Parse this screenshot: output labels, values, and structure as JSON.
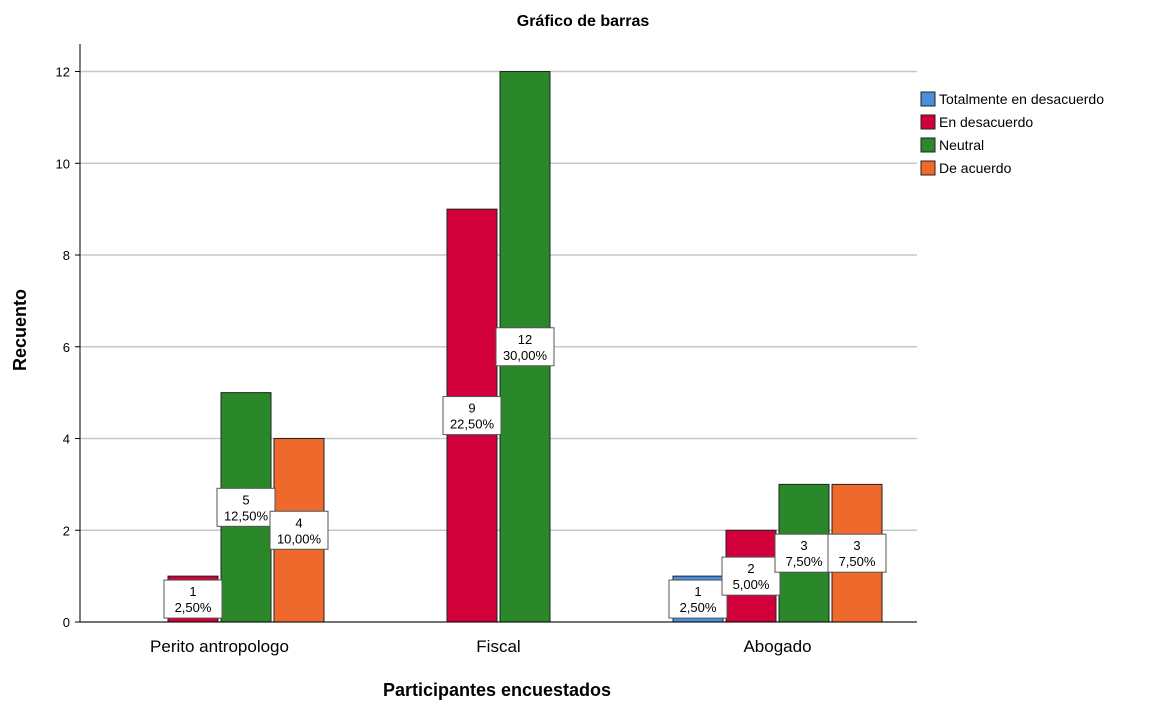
{
  "chart_data": {
    "type": "bar",
    "title": "Gráfico de barras",
    "x_label": "Participantes encuestados",
    "y_label": "Recuento",
    "categories": [
      "Perito antropologo",
      "Fiscal",
      "Abogado"
    ],
    "series": [
      {
        "name": "Totalmente en desacuerdo",
        "color": "#4a8fdc",
        "values": [
          null,
          null,
          1
        ],
        "percent_labels": [
          null,
          null,
          "2,50%"
        ]
      },
      {
        "name": "En desacuerdo",
        "color": "#d2003a",
        "values": [
          1,
          9,
          2
        ],
        "percent_labels": [
          "2,50%",
          "22,50%",
          "5,00%"
        ]
      },
      {
        "name": "Neutral",
        "color": "#2a882a",
        "values": [
          5,
          12,
          3
        ],
        "percent_labels": [
          "12,50%",
          "30,00%",
          "7,50%"
        ]
      },
      {
        "name": "De acuerdo",
        "color": "#f0692c",
        "values": [
          4,
          null,
          3
        ],
        "percent_labels": [
          "10,00%",
          null,
          "7,50%"
        ]
      }
    ],
    "ylim": [
      0,
      12.6
    ],
    "yticks": [
      0,
      2,
      4,
      6,
      8,
      10,
      12
    ],
    "grid": true,
    "legend": "right"
  }
}
